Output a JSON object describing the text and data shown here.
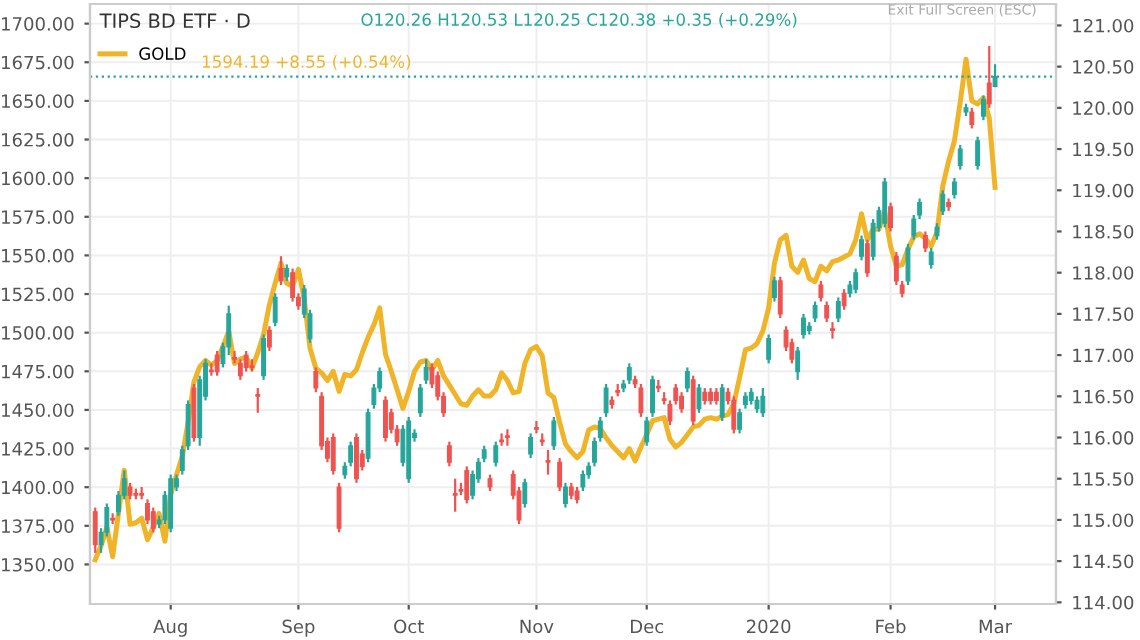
{
  "chart_data": {
    "type": "candlestick",
    "title": "TIPS BD ETF · D",
    "annotations": [
      "O120.26 H120.53 L120.25 C120.38 +0.35 (+0.29%)",
      "1594.19 +8.55 (+0.54%)",
      "Exit Full Screen (ESC)"
    ],
    "categories": [
      null,
      null,
      null,
      null,
      null,
      null,
      null,
      null,
      null,
      null,
      null,
      null,
      null,
      "Aug",
      null,
      null,
      null,
      null,
      null,
      null,
      null,
      null,
      null,
      null,
      null,
      null,
      null,
      null,
      null,
      null,
      null,
      null,
      null,
      null,
      null,
      "Sep",
      null,
      null,
      null,
      null,
      null,
      null,
      null,
      null,
      null,
      null,
      null,
      null,
      null,
      null,
      null,
      null,
      null,
      null,
      "Oct",
      null,
      null,
      null,
      null,
      null,
      null,
      null,
      null,
      null,
      null,
      null,
      null,
      null,
      null,
      null,
      null,
      null,
      null,
      null,
      null,
      null,
      "Nov",
      null,
      null,
      null,
      null,
      null,
      null,
      null,
      null,
      null,
      null,
      null,
      null,
      null,
      null,
      null,
      null,
      null,
      null,
      "Dec",
      null,
      null,
      null,
      null,
      null,
      null,
      null,
      null,
      null,
      null,
      null,
      null,
      null,
      null,
      null,
      null,
      null,
      null,
      null,
      null,
      "2020",
      null,
      null,
      null,
      null,
      null,
      null,
      null,
      null,
      null,
      null,
      null,
      null,
      null,
      null,
      null,
      null,
      null,
      null,
      null,
      null,
      "Feb",
      null,
      null,
      null,
      null,
      null,
      null,
      null,
      null,
      null,
      null,
      null,
      null,
      null,
      null,
      null,
      null,
      null,
      "Mar",
      null,
      null,
      null,
      null,
      null,
      null,
      null,
      null,
      null,
      null
    ],
    "series": [
      {
        "ohlc": [
          [
            115.1,
            115.15,
            114.6,
            114.7
          ],
          [
            114.7,
            114.9,
            114.6,
            114.85
          ],
          [
            114.85,
            115.2,
            114.8,
            115.15
          ],
          [
            115.02,
            115.08,
            114.95,
            115.0
          ],
          [
            115.1,
            115.35,
            115.05,
            115.3
          ],
          [
            115.3,
            115.6,
            115.25,
            115.5
          ],
          [
            115.4,
            115.45,
            115.25,
            115.3
          ],
          [
            115.32,
            115.38,
            115.25,
            115.3
          ],
          [
            115.32,
            115.4,
            115.25,
            115.3
          ],
          [
            115.2,
            115.25,
            114.95,
            115.0
          ],
          [
            115.1,
            115.15,
            114.85,
            114.9
          ],
          [
            114.95,
            115.05,
            114.9,
            115.0
          ],
          [
            115.0,
            115.35,
            114.95,
            115.3
          ],
          [
            114.9,
            115.55,
            114.85,
            115.5
          ],
          [
            115.4,
            115.55,
            115.35,
            115.5
          ],
          [
            115.6,
            115.9,
            115.55,
            115.85
          ],
          [
            115.9,
            116.45,
            115.85,
            116.4
          ],
          [
            116.6,
            116.65,
            115.95,
            116.0
          ],
          [
            116.0,
            116.75,
            115.9,
            116.7
          ],
          [
            116.5,
            116.95,
            116.45,
            116.9
          ],
          [
            116.82,
            116.9,
            116.75,
            116.8
          ],
          [
            117.0,
            117.05,
            116.75,
            116.8
          ],
          [
            116.9,
            117.15,
            116.85,
            117.1
          ],
          [
            117.1,
            117.6,
            117.0,
            117.5
          ],
          [
            116.97,
            117.05,
            116.9,
            116.95
          ],
          [
            116.9,
            116.95,
            116.7,
            116.75
          ],
          [
            117.0,
            117.05,
            116.8,
            116.85
          ],
          [
            116.87,
            116.95,
            116.8,
            116.85
          ],
          [
            116.52,
            116.6,
            116.3,
            116.5
          ],
          [
            116.75,
            117.25,
            116.7,
            117.2
          ],
          [
            117.3,
            117.35,
            117.05,
            117.1
          ],
          [
            117.4,
            117.75,
            117.35,
            117.7
          ],
          [
            118.05,
            118.2,
            117.85,
            117.9
          ],
          [
            117.95,
            118.1,
            117.9,
            118.05
          ],
          [
            118.0,
            118.05,
            117.65,
            117.7
          ],
          [
            117.7,
            117.75,
            117.55,
            117.6
          ],
          [
            117.5,
            117.85,
            117.45,
            117.8
          ],
          [
            117.2,
            117.55,
            117.15,
            117.5
          ],
          [
            116.8,
            116.85,
            116.55,
            116.6
          ],
          [
            116.5,
            116.55,
            115.85,
            115.9
          ],
          [
            115.95,
            116.0,
            115.7,
            115.75
          ],
          [
            116.0,
            116.05,
            115.55,
            115.6
          ],
          [
            115.4,
            115.45,
            114.85,
            114.9
          ],
          [
            115.55,
            115.7,
            115.5,
            115.65
          ],
          [
            115.7,
            115.95,
            115.65,
            115.9
          ],
          [
            116.0,
            116.05,
            115.45,
            115.5
          ],
          [
            115.8,
            115.85,
            115.6,
            115.65
          ],
          [
            115.75,
            116.35,
            115.7,
            116.3
          ],
          [
            116.4,
            116.65,
            116.35,
            116.6
          ],
          [
            116.6,
            116.85,
            116.55,
            116.8
          ],
          [
            116.45,
            116.5,
            115.95,
            116.0
          ],
          [
            116.3,
            116.35,
            116.05,
            116.1
          ],
          [
            116.1,
            116.15,
            115.9,
            115.95
          ],
          [
            115.7,
            116.15,
            115.65,
            116.1
          ],
          [
            115.5,
            116.25,
            115.45,
            116.2
          ],
          [
            116.0,
            116.1,
            115.95,
            116.05
          ],
          [
            116.3,
            116.65,
            116.25,
            116.6
          ],
          [
            116.7,
            116.95,
            116.65,
            116.85
          ],
          [
            116.85,
            116.9,
            116.6,
            116.65
          ],
          [
            116.75,
            116.8,
            116.45,
            116.5
          ],
          [
            116.5,
            116.55,
            116.25,
            116.3
          ],
          [
            115.9,
            115.95,
            115.65,
            115.7
          ],
          [
            115.32,
            115.5,
            115.1,
            115.3
          ],
          [
            115.37,
            115.45,
            115.3,
            115.35
          ],
          [
            115.6,
            115.65,
            115.2,
            115.25
          ],
          [
            115.3,
            115.6,
            115.25,
            115.55
          ],
          [
            115.5,
            115.75,
            115.45,
            115.7
          ],
          [
            115.75,
            115.9,
            115.7,
            115.85
          ],
          [
            115.5,
            115.55,
            115.35,
            115.4
          ],
          [
            115.7,
            115.95,
            115.65,
            115.9
          ],
          [
            115.97,
            116.05,
            115.9,
            115.95
          ],
          [
            116.02,
            116.1,
            115.9,
            116.0
          ],
          [
            115.55,
            115.6,
            115.25,
            115.3
          ],
          [
            115.35,
            115.4,
            114.95,
            115.0
          ],
          [
            115.2,
            115.5,
            115.15,
            115.45
          ],
          [
            115.8,
            116.05,
            115.75,
            116.0
          ],
          [
            116.12,
            116.2,
            116.05,
            116.1
          ],
          [
            115.97,
            116.05,
            115.9,
            115.95
          ],
          [
            115.72,
            115.85,
            115.55,
            115.7
          ],
          [
            115.9,
            116.25,
            115.85,
            116.2
          ],
          [
            115.7,
            115.75,
            115.35,
            115.4
          ],
          [
            115.2,
            115.45,
            115.15,
            115.4
          ],
          [
            115.4,
            115.45,
            115.25,
            115.3
          ],
          [
            115.35,
            115.4,
            115.2,
            115.25
          ],
          [
            115.4,
            115.6,
            115.35,
            115.55
          ],
          [
            115.55,
            115.7,
            115.5,
            115.65
          ],
          [
            115.7,
            116.0,
            115.65,
            115.95
          ],
          [
            116.0,
            116.25,
            115.95,
            116.2
          ],
          [
            116.3,
            116.65,
            116.25,
            116.6
          ],
          [
            116.45,
            116.5,
            116.35,
            116.4
          ],
          [
            116.57,
            116.65,
            116.5,
            116.55
          ],
          [
            116.6,
            116.7,
            116.55,
            116.65
          ],
          [
            116.7,
            116.9,
            116.65,
            116.85
          ],
          [
            116.7,
            116.75,
            116.6,
            116.65
          ],
          [
            116.6,
            116.65,
            116.25,
            116.3
          ],
          [
            115.95,
            116.25,
            115.9,
            116.2
          ],
          [
            116.3,
            116.75,
            116.25,
            116.7
          ],
          [
            116.62,
            116.7,
            116.55,
            116.6
          ],
          [
            116.47,
            116.55,
            116.4,
            116.45
          ],
          [
            116.4,
            116.45,
            116.15,
            116.2
          ],
          [
            116.6,
            116.65,
            116.4,
            116.45
          ],
          [
            116.5,
            116.55,
            116.3,
            116.35
          ],
          [
            116.6,
            116.85,
            116.55,
            116.8
          ],
          [
            116.7,
            116.75,
            116.15,
            116.2
          ],
          [
            116.35,
            116.65,
            116.3,
            116.6
          ],
          [
            116.55,
            116.6,
            116.4,
            116.45
          ],
          [
            116.55,
            116.6,
            116.4,
            116.45
          ],
          [
            116.55,
            116.6,
            116.4,
            116.45
          ],
          [
            116.25,
            116.65,
            116.2,
            116.6
          ],
          [
            116.55,
            116.6,
            116.4,
            116.45
          ],
          [
            116.45,
            116.5,
            116.05,
            116.1
          ],
          [
            116.1,
            116.35,
            116.05,
            116.3
          ],
          [
            116.4,
            116.55,
            116.35,
            116.5
          ],
          [
            116.45,
            116.6,
            116.4,
            116.55
          ],
          [
            116.35,
            116.5,
            116.3,
            116.45
          ],
          [
            116.3,
            116.6,
            116.25,
            116.5
          ],
          [
            116.95,
            117.25,
            116.9,
            117.2
          ],
          [
            117.7,
            117.95,
            117.65,
            117.9
          ],
          [
            117.9,
            117.95,
            117.45,
            117.5
          ],
          [
            117.3,
            117.35,
            117.05,
            117.1
          ],
          [
            117.15,
            117.2,
            116.9,
            116.95
          ],
          [
            116.8,
            117.1,
            116.7,
            117.05
          ],
          [
            117.25,
            117.5,
            117.2,
            117.45
          ],
          [
            117.3,
            117.4,
            117.25,
            117.35
          ],
          [
            117.45,
            117.65,
            117.4,
            117.6
          ],
          [
            117.85,
            117.9,
            117.65,
            117.7
          ],
          [
            117.6,
            117.65,
            117.4,
            117.45
          ],
          [
            117.32,
            117.4,
            117.2,
            117.3
          ],
          [
            117.45,
            117.7,
            117.4,
            117.65
          ],
          [
            117.75,
            117.8,
            117.55,
            117.6
          ],
          [
            117.75,
            117.9,
            117.7,
            117.85
          ],
          [
            117.8,
            118.05,
            117.75,
            118.0
          ],
          [
            118.2,
            118.45,
            118.15,
            118.4
          ],
          [
            118.35,
            118.4,
            117.95,
            118.0
          ],
          [
            118.2,
            118.65,
            118.15,
            118.6
          ],
          [
            118.55,
            118.8,
            118.5,
            118.75
          ],
          [
            118.6,
            119.15,
            118.55,
            119.1
          ],
          [
            118.8,
            118.85,
            118.5,
            118.55
          ],
          [
            118.2,
            118.25,
            117.85,
            117.9
          ],
          [
            117.85,
            117.9,
            117.7,
            117.75
          ],
          [
            117.9,
            118.35,
            117.85,
            118.3
          ],
          [
            118.45,
            118.7,
            118.4,
            118.65
          ],
          [
            118.7,
            118.9,
            118.65,
            118.85
          ],
          [
            118.45,
            118.5,
            118.25,
            118.3
          ],
          [
            118.1,
            118.3,
            118.05,
            118.25
          ],
          [
            118.45,
            118.6,
            118.4,
            118.55
          ],
          [
            118.75,
            119.0,
            118.7,
            118.95
          ],
          [
            118.85,
            118.9,
            118.75,
            118.8
          ],
          [
            118.95,
            119.15,
            118.9,
            119.1
          ],
          [
            119.3,
            119.55,
            119.25,
            119.5
          ],
          [
            119.95,
            120.05,
            119.9,
            120.0
          ],
          [
            119.95,
            120.0,
            119.75,
            119.8
          ],
          [
            119.3,
            119.65,
            119.25,
            119.6
          ],
          [
            119.9,
            120.15,
            119.85,
            120.1
          ],
          [
            120.3,
            120.75,
            120.0,
            120.05
          ],
          [
            120.26,
            120.53,
            120.25,
            120.38
          ],
          null,
          null,
          null,
          null,
          null,
          null,
          null,
          null,
          null,
          null
        ],
        "colors": [
          "#ef5350",
          "#26a69a",
          "#26a69a",
          "#ef5350",
          "#26a69a",
          "#26a69a",
          "#ef5350",
          "#ef5350",
          "#ef5350",
          "#ef5350",
          "#ef5350",
          "#26a69a",
          "#26a69a",
          "#26a69a",
          "#26a69a",
          "#26a69a",
          "#26a69a",
          "#ef5350",
          "#26a69a",
          "#26a69a",
          "#ef5350",
          "#ef5350",
          "#26a69a",
          "#26a69a",
          "#ef5350",
          "#ef5350",
          "#ef5350",
          "#ef5350",
          "#ef5350",
          "#26a69a",
          "#ef5350",
          "#26a69a",
          "#ef5350",
          "#26a69a",
          "#ef5350",
          "#ef5350",
          "#26a69a",
          "#26a69a",
          "#ef5350",
          "#ef5350",
          "#ef5350",
          "#ef5350",
          "#ef5350",
          "#26a69a",
          "#26a69a",
          "#ef5350",
          "#ef5350",
          "#26a69a",
          "#26a69a",
          "#26a69a",
          "#ef5350",
          "#ef5350",
          "#ef5350",
          "#26a69a",
          "#26a69a",
          "#26a69a",
          "#26a69a",
          "#26a69a",
          "#ef5350",
          "#ef5350",
          "#ef5350",
          "#ef5350",
          "#ef5350",
          "#ef5350",
          "#ef5350",
          "#26a69a",
          "#26a69a",
          "#26a69a",
          "#ef5350",
          "#26a69a",
          "#ef5350",
          "#ef5350",
          "#ef5350",
          "#ef5350",
          "#26a69a",
          "#26a69a",
          "#ef5350",
          "#ef5350",
          "#ef5350",
          "#26a69a",
          "#ef5350",
          "#26a69a",
          "#ef5350",
          "#ef5350",
          "#26a69a",
          "#26a69a",
          "#26a69a",
          "#26a69a",
          "#26a69a",
          "#ef5350",
          "#ef5350",
          "#26a69a",
          "#26a69a",
          "#ef5350",
          "#ef5350",
          "#26a69a",
          "#26a69a",
          "#ef5350",
          "#ef5350",
          "#ef5350",
          "#ef5350",
          "#ef5350",
          "#26a69a",
          "#ef5350",
          "#26a69a",
          "#ef5350",
          "#ef5350",
          "#ef5350",
          "#26a69a",
          "#ef5350",
          "#ef5350",
          "#26a69a",
          "#26a69a",
          "#26a69a",
          "#26a69a",
          "#26a69a",
          "#26a69a",
          "#26a69a",
          "#ef5350",
          "#ef5350",
          "#ef5350",
          "#26a69a",
          "#26a69a",
          "#26a69a",
          "#26a69a",
          "#ef5350",
          "#ef5350",
          "#ef5350",
          "#26a69a",
          "#ef5350",
          "#26a69a",
          "#26a69a",
          "#26a69a",
          "#ef5350",
          "#26a69a",
          "#26a69a",
          "#26a69a",
          "#ef5350",
          "#ef5350",
          "#ef5350",
          "#26a69a",
          "#26a69a",
          "#26a69a",
          "#ef5350",
          "#26a69a",
          "#26a69a",
          "#26a69a",
          "#ef5350",
          "#26a69a",
          "#26a69a",
          "#26a69a",
          "#ef5350",
          "#26a69a",
          "#26a69a",
          "#ef5350",
          "#26a69a",
          null,
          null,
          null,
          null,
          null,
          null,
          null,
          null,
          null,
          null
        ]
      },
      {
        "type": "line",
        "name": "GOLD",
        "axis": "y2",
        "color": "#f0b429",
        "values": [
          1353,
          1362,
          1374,
          1355,
          1383,
          1411,
          1376,
          1377,
          1380,
          1366,
          1374,
          1383,
          1365,
          1395,
          1408,
          1420,
          1442,
          1468,
          1478,
          1482,
          1479,
          1482,
          1491,
          1501,
          1480,
          1483,
          1484,
          1477,
          1487,
          1499,
          1518,
          1532,
          1545,
          1532,
          1530,
          1541,
          1522,
          1490,
          1477,
          1474,
          1469,
          1475,
          1462,
          1473,
          1472,
          1476,
          1487,
          1497,
          1505,
          1516,
          1486,
          1475,
          1463,
          1451,
          1462,
          1475,
          1481,
          1482,
          1476,
          1482,
          1472,
          1466,
          1460,
          1454,
          1453,
          1459,
          1463,
          1459,
          1459,
          1463,
          1474,
          1469,
          1461,
          1462,
          1480,
          1489,
          1491,
          1485,
          1461,
          1458,
          1442,
          1428,
          1423,
          1419,
          1423,
          1437,
          1439,
          1438,
          1432,
          1427,
          1423,
          1419,
          1425,
          1417,
          1426,
          1434,
          1443,
          1444,
          1445,
          1431,
          1426,
          1429,
          1434,
          1439,
          1440,
          1444,
          1445,
          1444,
          1446,
          1447,
          1454,
          1471,
          1489,
          1490,
          1493,
          1501,
          1516,
          1545,
          1560,
          1563,
          1543,
          1539,
          1547,
          1535,
          1533,
          1543,
          1540,
          1546,
          1547,
          1549,
          1551,
          1560,
          1577,
          1560,
          1567,
          1567,
          1578,
          1556,
          1543,
          1544,
          1554,
          1562,
          1564,
          1561,
          1556,
          1565,
          1595,
          1611,
          1624,
          1649,
          1677,
          1650,
          1648,
          1652,
          1639,
          1594,
          null,
          null,
          null,
          null,
          null,
          null,
          null,
          null,
          null,
          null
        ]
      }
    ],
    "ylim": [
      113.98,
      121.26
    ],
    "yticks": [
      {
        "value": 114,
        "label": "114.00"
      },
      {
        "value": 114.5,
        "label": "114.50"
      },
      {
        "value": 115,
        "label": "115.00"
      },
      {
        "value": 115.5,
        "label": "115.50"
      },
      {
        "value": 116,
        "label": "116.00"
      },
      {
        "value": 116.5,
        "label": "116.50"
      },
      {
        "value": 117,
        "label": "117.00"
      },
      {
        "value": 117.5,
        "label": "117.50"
      },
      {
        "value": 118,
        "label": "118.00"
      },
      {
        "value": 118.5,
        "label": "118.50"
      },
      {
        "value": 119,
        "label": "119.00"
      },
      {
        "value": 119.5,
        "label": "119.50"
      },
      {
        "value": 120,
        "label": "120.00"
      },
      {
        "value": 120.5,
        "label": "120.50"
      },
      {
        "value": 121,
        "label": "121.00"
      }
    ],
    "y2lim": [
      1324.4,
      1712.7
    ],
    "y2ticks": [
      {
        "value": 1350,
        "label": "1350.00"
      },
      {
        "value": 1375,
        "label": "1375.00"
      },
      {
        "value": 1400,
        "label": "1400.00"
      },
      {
        "value": 1425,
        "label": "1425.00"
      },
      {
        "value": 1450,
        "label": "1450.00"
      },
      {
        "value": 1475,
        "label": "1475.00"
      },
      {
        "value": 1500,
        "label": "1500.00"
      },
      {
        "value": 1525,
        "label": "1525.00"
      },
      {
        "value": 1550,
        "label": "1550.00"
      },
      {
        "value": 1575,
        "label": "1575.00"
      },
      {
        "value": 1600,
        "label": "1600.00"
      },
      {
        "value": 1625,
        "label": "1625.00"
      },
      {
        "value": 1650,
        "label": "1650.00"
      },
      {
        "value": 1675,
        "label": "1675.00"
      },
      {
        "value": 1700,
        "label": "1700.00"
      }
    ],
    "ref_lines": [
      {
        "axis": "y",
        "value": 120.38,
        "color": "#26a69a",
        "line_style": "dotted"
      }
    ],
    "grid": true,
    "legend": "top left"
  }
}
